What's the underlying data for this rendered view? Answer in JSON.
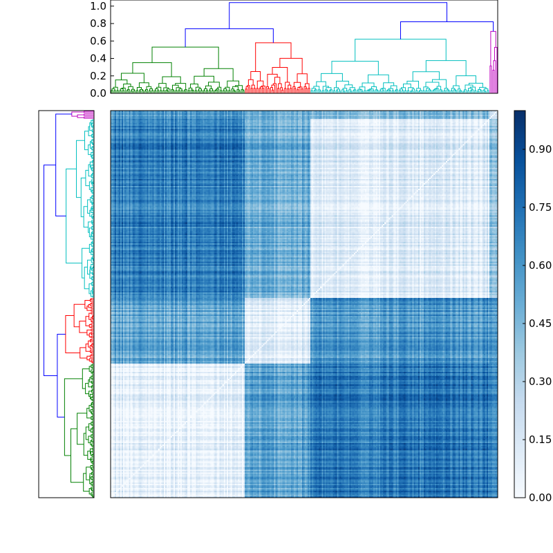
{
  "chart_data": [
    {
      "type": "dendrogram",
      "orientation": "top",
      "ylim": [
        0,
        1.07
      ],
      "yticks": [
        "0.0",
        "0.2",
        "0.4",
        "0.6",
        "0.8",
        "1.0"
      ],
      "ytick_values": [
        0,
        0.2,
        0.4,
        0.6,
        0.8,
        1.0
      ],
      "clusters": [
        {
          "color": "#008000",
          "leaves": 96,
          "height": 0.53
        },
        {
          "color": "#ff0000",
          "leaves": 47,
          "height": 0.58
        },
        {
          "color": "#00bfbf",
          "leaves": 128,
          "height": 0.62
        },
        {
          "color": "#bf00bf",
          "leaves": 6,
          "height": 0.71
        }
      ],
      "links": [
        {
          "color": "#0000ff",
          "children": [
            "green",
            "red"
          ],
          "height": 0.74
        },
        {
          "color": "#0000ff",
          "children": [
            "cyan",
            "magenta"
          ],
          "height": 0.82
        },
        {
          "color": "#0000ff",
          "children": [
            "green+red",
            "cyan+magenta"
          ],
          "height": 1.04
        }
      ]
    },
    {
      "type": "dendrogram",
      "orientation": "left",
      "clusters": [
        {
          "color": "#bf00bf",
          "leaves": 6,
          "height": 0.43
        },
        {
          "color": "#00bfbf",
          "leaves": 128,
          "height": 0.54
        },
        {
          "color": "#ff0000",
          "leaves": 47,
          "height": 0.55
        },
        {
          "color": "#008000",
          "leaves": 96,
          "height": 0.57
        }
      ],
      "links": [
        {
          "color": "#0000ff",
          "children": [
            "magenta",
            "cyan"
          ],
          "height": 0.74
        },
        {
          "color": "#0000ff",
          "children": [
            "red",
            "green"
          ],
          "height": 0.71
        },
        {
          "color": "#0000ff",
          "children": [
            "magenta+cyan",
            "red+green"
          ],
          "height": 0.97
        }
      ]
    },
    {
      "type": "heatmap",
      "colormap": "Blues",
      "value_range": [
        0,
        1.0
      ],
      "n": 277,
      "row_blocks": [
        {
          "name": "magenta",
          "size": 6
        },
        {
          "name": "cyan",
          "size": 128
        },
        {
          "name": "red",
          "size": 47
        },
        {
          "name": "green",
          "size": 96
        }
      ],
      "col_blocks": [
        {
          "name": "green",
          "size": 96
        },
        {
          "name": "red",
          "size": 47
        },
        {
          "name": "cyan",
          "size": 128
        },
        {
          "name": "magenta",
          "size": 6
        }
      ],
      "block_means": {
        "magenta": {
          "green": 0.55,
          "red": 0.45,
          "cyan": 0.4,
          "magenta": 0.1
        },
        "cyan": {
          "green": 0.7,
          "red": 0.5,
          "cyan": 0.12,
          "magenta": 0.35
        },
        "red": {
          "green": 0.55,
          "red": 0.12,
          "cyan": 0.6,
          "magenta": 0.55
        },
        "green": {
          "green": 0.08,
          "red": 0.55,
          "cyan": 0.72,
          "magenta": 0.6
        }
      },
      "diagonal": 0.0
    },
    {
      "type": "colorbar",
      "colormap": "Blues",
      "range": [
        0,
        1.0
      ],
      "ticks": [
        "0.00",
        "0.15",
        "0.30",
        "0.45",
        "0.60",
        "0.75",
        "0.90"
      ],
      "tick_values": [
        0,
        0.15,
        0.3,
        0.45,
        0.6,
        0.75,
        0.9
      ]
    }
  ]
}
